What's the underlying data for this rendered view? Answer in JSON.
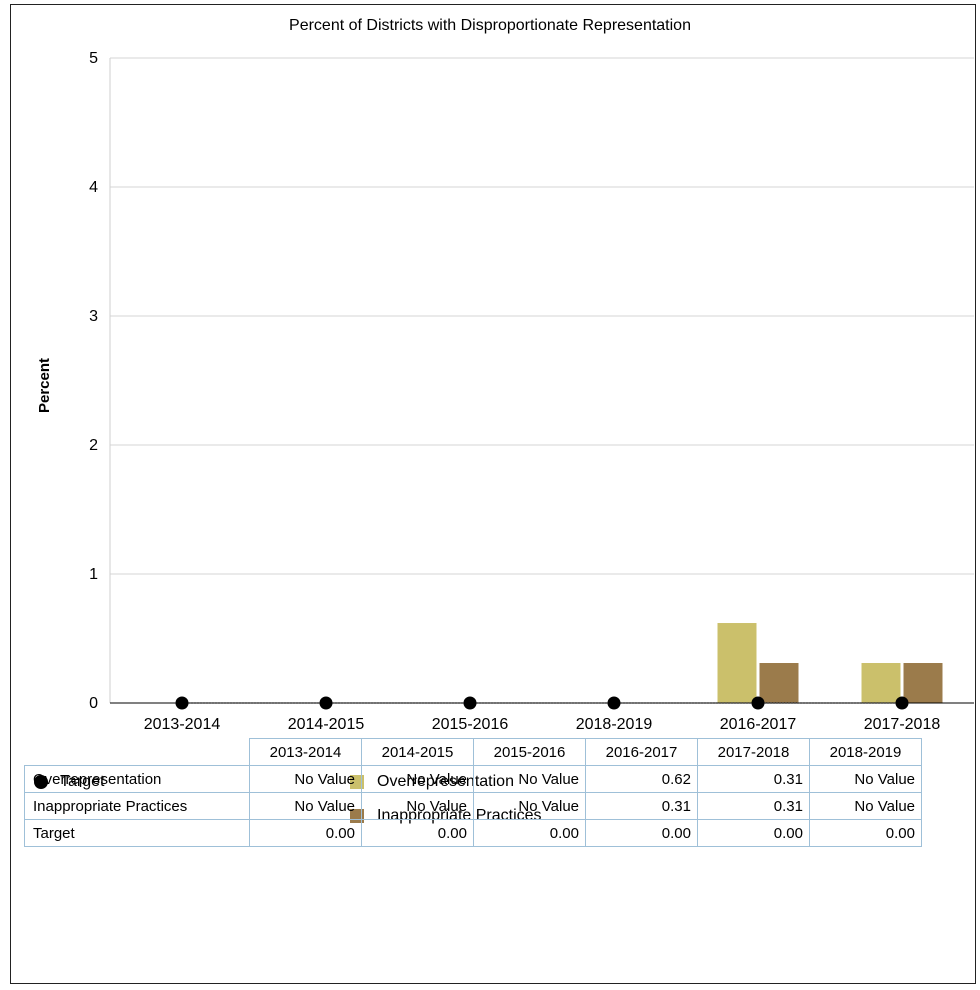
{
  "colors": {
    "overrepresentation": "#cbc06b",
    "inappropriate": "#9b7b4b",
    "target": "#000000",
    "grid": "#d6d6d6"
  },
  "chart_data": {
    "type": "bar",
    "title": "Percent of Districts with Disproportionate Representation",
    "xlabel": "",
    "ylabel": "Percent",
    "ylim": [
      0,
      5
    ],
    "yticks": [
      "0",
      "1",
      "2",
      "3",
      "4",
      "5"
    ],
    "categories": [
      "2013-2014",
      "2014-2015",
      "2015-2016",
      "2018-2019",
      "2016-2017",
      "2017-2018"
    ],
    "series": [
      {
        "name": "Overrepresentation",
        "type": "bar",
        "values": [
          null,
          null,
          null,
          null,
          0.62,
          0.31
        ]
      },
      {
        "name": "Inappropriate Practices",
        "type": "bar",
        "values": [
          null,
          null,
          null,
          null,
          0.31,
          0.31
        ]
      },
      {
        "name": "Target",
        "type": "line",
        "values": [
          0,
          0,
          0,
          0,
          0,
          0
        ]
      }
    ],
    "legend": [
      "Target",
      "Overrepresentation",
      "Inappropriate Practices"
    ],
    "grid": true
  },
  "table": {
    "headers": [
      "2013-2014",
      "2014-2015",
      "2015-2016",
      "2016-2017",
      "2017-2018",
      "2018-2019"
    ],
    "rows": [
      {
        "label": "Overrepresentation",
        "cells": [
          "No Value",
          "No Value",
          "No Value",
          "0.62",
          "0.31",
          "No Value"
        ]
      },
      {
        "label": "Inappropriate Practices",
        "cells": [
          "No Value",
          "No Value",
          "No Value",
          "0.31",
          "0.31",
          "No Value"
        ]
      },
      {
        "label": "Target",
        "cells": [
          "0.00",
          "0.00",
          "0.00",
          "0.00",
          "0.00",
          "0.00"
        ]
      }
    ]
  }
}
